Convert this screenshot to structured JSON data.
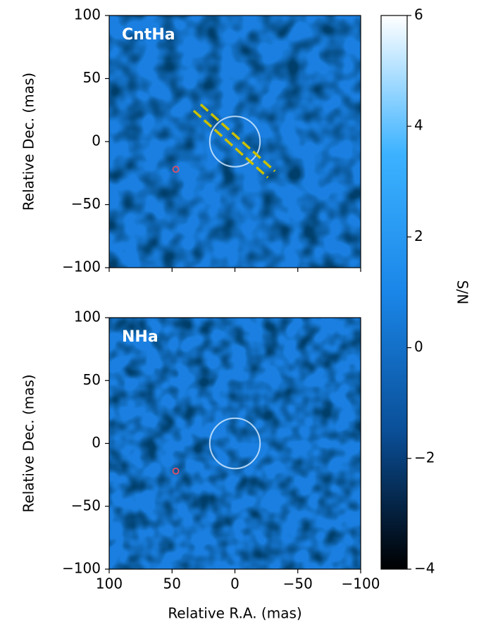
{
  "chart_data": [
    {
      "type": "image",
      "title": "CntHa",
      "ylabel": "Relative Dec. (mas)",
      "xlim": [
        100,
        -100
      ],
      "ylim": [
        -100,
        100
      ],
      "xticks": [
        100,
        50,
        0,
        {
          "value": -50,
          "label": "−50"
        },
        {
          "value": -100,
          "label": "−100"
        }
      ],
      "yticks": [
        {
          "value": -100,
          "label": "−100"
        },
        {
          "value": -50,
          "label": "−50"
        },
        0,
        50,
        100
      ],
      "show_xticklabels": false,
      "ring": {
        "x": 0,
        "y": 0,
        "r": 20,
        "color": "#cfe8ff"
      },
      "marker": {
        "x": 47,
        "y": -22,
        "color": "#e0506a"
      },
      "dashed_line": {
        "x": [
          30,
          -29
        ],
        "y": [
          27,
          -26
        ],
        "color": "#c8c000"
      }
    },
    {
      "type": "image",
      "title": "NHa",
      "ylabel": "Relative Dec. (mas)",
      "xlabel": "Relative R.A. (mas)",
      "xlim": [
        100,
        -100
      ],
      "ylim": [
        -100,
        100
      ],
      "xticks": [
        100,
        50,
        0,
        {
          "value": -50,
          "label": "−50"
        },
        {
          "value": -100,
          "label": "−100"
        }
      ],
      "yticks": [
        {
          "value": -100,
          "label": "−100"
        },
        {
          "value": -50,
          "label": "−50"
        },
        0,
        50,
        100
      ],
      "show_xticklabels": true,
      "ring": {
        "x": 0,
        "y": 0,
        "r": 20,
        "color": "#cfe8ff"
      },
      "marker": {
        "x": 47,
        "y": -22,
        "color": "#e0506a"
      }
    },
    {
      "type": "colorbar",
      "label": "S/N",
      "ylim": [
        -4,
        6
      ],
      "yticks": [
        {
          "value": -4,
          "label": "−4"
        },
        {
          "value": -2,
          "label": "−2"
        },
        0,
        2,
        4,
        6
      ],
      "colormap": [
        "#000000",
        "#0a4f98",
        "#1a86e8",
        "#3cb2ff",
        "#ffffff"
      ]
    }
  ]
}
